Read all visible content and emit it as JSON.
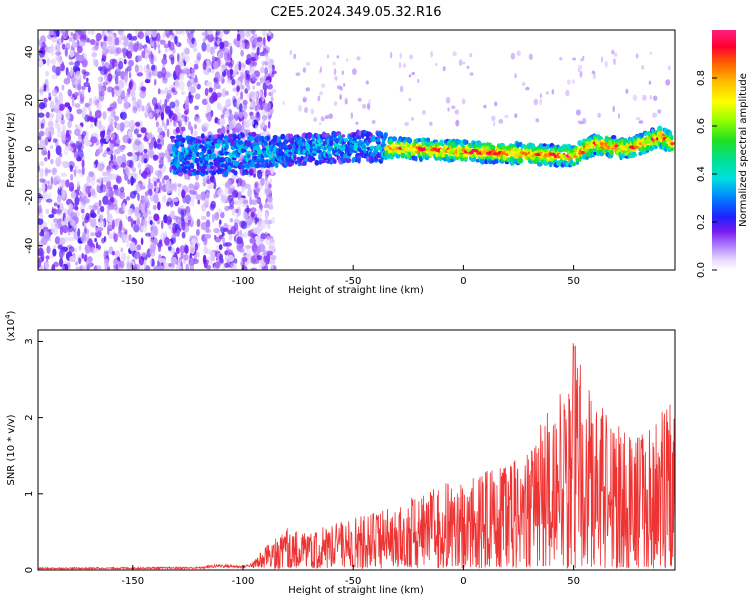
{
  "title": "C2E5.2024.349.05.32.R16",
  "chart_data": [
    {
      "type": "heatmap",
      "xlabel": "Height of straight line (km)",
      "ylabel": "Frequency (Hz)",
      "xlim": [
        -193,
        96
      ],
      "ylim": [
        -50,
        49
      ],
      "xticks": [
        -150,
        -100,
        -50,
        0,
        50
      ],
      "yticks": [
        -40,
        -20,
        0,
        20,
        40
      ],
      "colorbar": {
        "label": "Normalized spectral amplitude",
        "range": [
          0.0,
          1.0
        ],
        "ticks": [
          "0.0",
          "0.2",
          "0.4",
          "0.6",
          "0.8"
        ]
      },
      "ridge": {
        "description_points_x": [
          -130,
          -100,
          -50,
          0,
          50,
          60,
          75,
          90,
          95
        ],
        "description_points_y": [
          -3,
          -2,
          1,
          -1,
          -3,
          2,
          0,
          5,
          2
        ],
        "peak_amplitude_start_x": -35
      }
    },
    {
      "type": "line",
      "xlabel": "Height of straight line (km)",
      "ylabel": "SNR (10 * v/v)",
      "scale_label": "(x10",
      "scale_exp": "4",
      "xlim": [
        -193,
        96
      ],
      "ylim": [
        0,
        3.15
      ],
      "xticks": [
        -150,
        -100,
        -50,
        0,
        50
      ],
      "yticks": [
        0,
        1,
        2,
        3
      ],
      "color": "#ee3333",
      "envelope_x": [
        -193,
        -120,
        -111,
        -100,
        -96,
        -90,
        -80,
        -70,
        -60,
        -50,
        -40,
        -30,
        -20,
        -10,
        0,
        10,
        20,
        30,
        40,
        45,
        50,
        55,
        60,
        70,
        80,
        90,
        96
      ],
      "envelope_y": [
        0.03,
        0.04,
        0.08,
        0.06,
        0.1,
        0.3,
        0.55,
        0.5,
        0.6,
        0.7,
        0.75,
        0.85,
        1.0,
        1.2,
        1.15,
        1.3,
        1.4,
        1.55,
        2.3,
        2.4,
        3.15,
        2.6,
        2.25,
        1.9,
        1.8,
        2.1,
        2.25
      ]
    }
  ]
}
